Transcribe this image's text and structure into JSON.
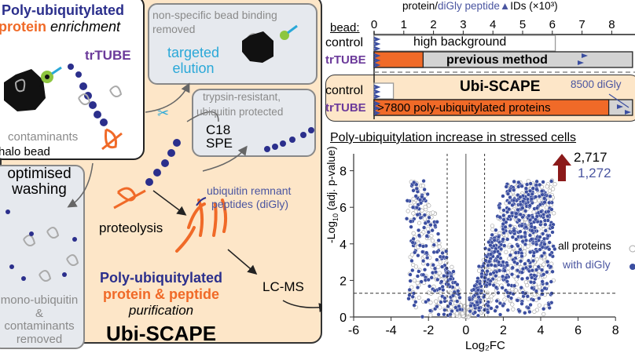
{
  "enrichment": {
    "title_line1": "Poly-ubiquitylated",
    "title_word_protein": "protein",
    "title_word_enrichment": "enrichment",
    "trtube_label": "trTUBE",
    "contaminants_label": "contaminants",
    "bead_label": "halo bead"
  },
  "elution_box": {
    "text_line1": "non-specific bead binding",
    "text_line2": "removed",
    "elution_line1": "targeted",
    "elution_line2": "elution"
  },
  "spe_box": {
    "text_line1": "trypsin-resistant,",
    "text_line2": "ubiquitin protected",
    "spe_line1": "C18",
    "spe_line2": "SPE"
  },
  "washing_box": {
    "title_line1": "optimised",
    "title_line2": "washing",
    "text_line1": "mono-ubiquitin",
    "text_line2": "&",
    "text_line3": "contaminants",
    "text_line4": "removed"
  },
  "workflow": {
    "proteolysis": "proteolysis",
    "remnant_line1": "ubiquitin remnant",
    "remnant_line2": "peptides (diGly)",
    "lcms": "LC-MS",
    "purif_line1": "Poly-ubiquitylated",
    "purif_line2": "protein & peptide",
    "purif_line3": "purification",
    "method_name": "Ubi-SCAPE"
  },
  "colors": {
    "peach": "#fde6c8",
    "orange": "#f06a28",
    "navy": "#2b2f8c",
    "diGly_blue": "#3b4ea0",
    "gray_bar": "#d3d3d3",
    "arrow_red": "#8b1a1a"
  },
  "chart_data": [
    {
      "type": "bar",
      "title_part1": "protein/",
      "title_part2": "diGly peptide",
      "title_part3": "IDs (×10³)",
      "axis_label": "bead:",
      "xlim": [
        0,
        8
      ],
      "ticks": [
        "0",
        "1",
        "2",
        "3",
        "4",
        "5",
        "6",
        "7",
        "8"
      ],
      "groups": [
        {
          "name": "previous method",
          "rows": [
            {
              "label": "control",
              "bar_text": "high background",
              "protein_ids": 6.1
            },
            {
              "label": "trTUBE",
              "bar_text": "previous method",
              "poly_ub_ids": 1.65,
              "protein_ids": 8.7
            }
          ]
        },
        {
          "name": "Ubi-SCAPE",
          "rows": [
            {
              "label": "control",
              "protein_ids": 0.65
            },
            {
              "label": "trTUBE",
              "bar_text": ">7800 poly-ubiquitylated proteins",
              "poly_ub_ids": 7.9,
              "protein_ids": 8.7
            }
          ]
        }
      ],
      "annotation": "8500 diGly"
    },
    {
      "type": "scatter",
      "title": "Poly-ubiquitylation increase in stressed cells",
      "xlabel": "Log₂FC",
      "ylabel": "-Log₁₀ (adj. p-value)",
      "xlim": [
        -6,
        8
      ],
      "ylim": [
        0,
        8.9
      ],
      "xticks": [
        "-6",
        "-4",
        "-2",
        "0",
        "2",
        "4",
        "6",
        "8"
      ],
      "yticks": [
        "0",
        "2",
        "4",
        "6",
        "8"
      ],
      "thresholds": {
        "log2fc": [
          -1,
          1
        ],
        "neg_log10_p": 1.3
      },
      "legend": [
        {
          "name": "all proteins",
          "marker": "open gray circle"
        },
        {
          "name": "with diGly",
          "marker": "filled blue circle"
        }
      ],
      "legend_placement": "right",
      "up_count_all": "2,717",
      "up_count_diGly": "1,272"
    }
  ]
}
